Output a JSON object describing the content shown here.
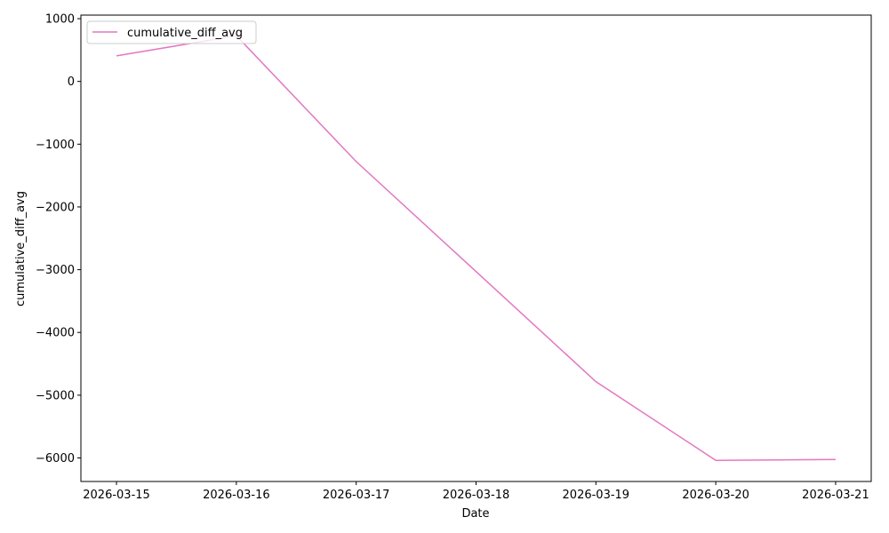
{
  "chart_data": {
    "type": "line",
    "title": "",
    "xlabel": "Date",
    "ylabel": "cumulative_diff_avg",
    "x": [
      "2026-03-15",
      "2026-03-16",
      "2026-03-17",
      "2026-03-18",
      "2026-03-19",
      "2026-03-20",
      "2026-03-21"
    ],
    "series": [
      {
        "name": "cumulative_diff_avg",
        "color": "#e377c2",
        "values": [
          407,
          728,
          -1277,
          -3030,
          -4785,
          -6038,
          -6024
        ]
      }
    ],
    "yticks": [
      1000,
      0,
      -1000,
      -2000,
      -3000,
      -4000,
      -5000,
      -6000
    ],
    "ytick_labels": [
      "1000",
      "0",
      "−1000",
      "−2000",
      "−3000",
      "−4000",
      "−5000",
      "−6000"
    ],
    "ylim": [
      -6375,
      1057
    ],
    "grid": false,
    "legend": "upper-left"
  }
}
